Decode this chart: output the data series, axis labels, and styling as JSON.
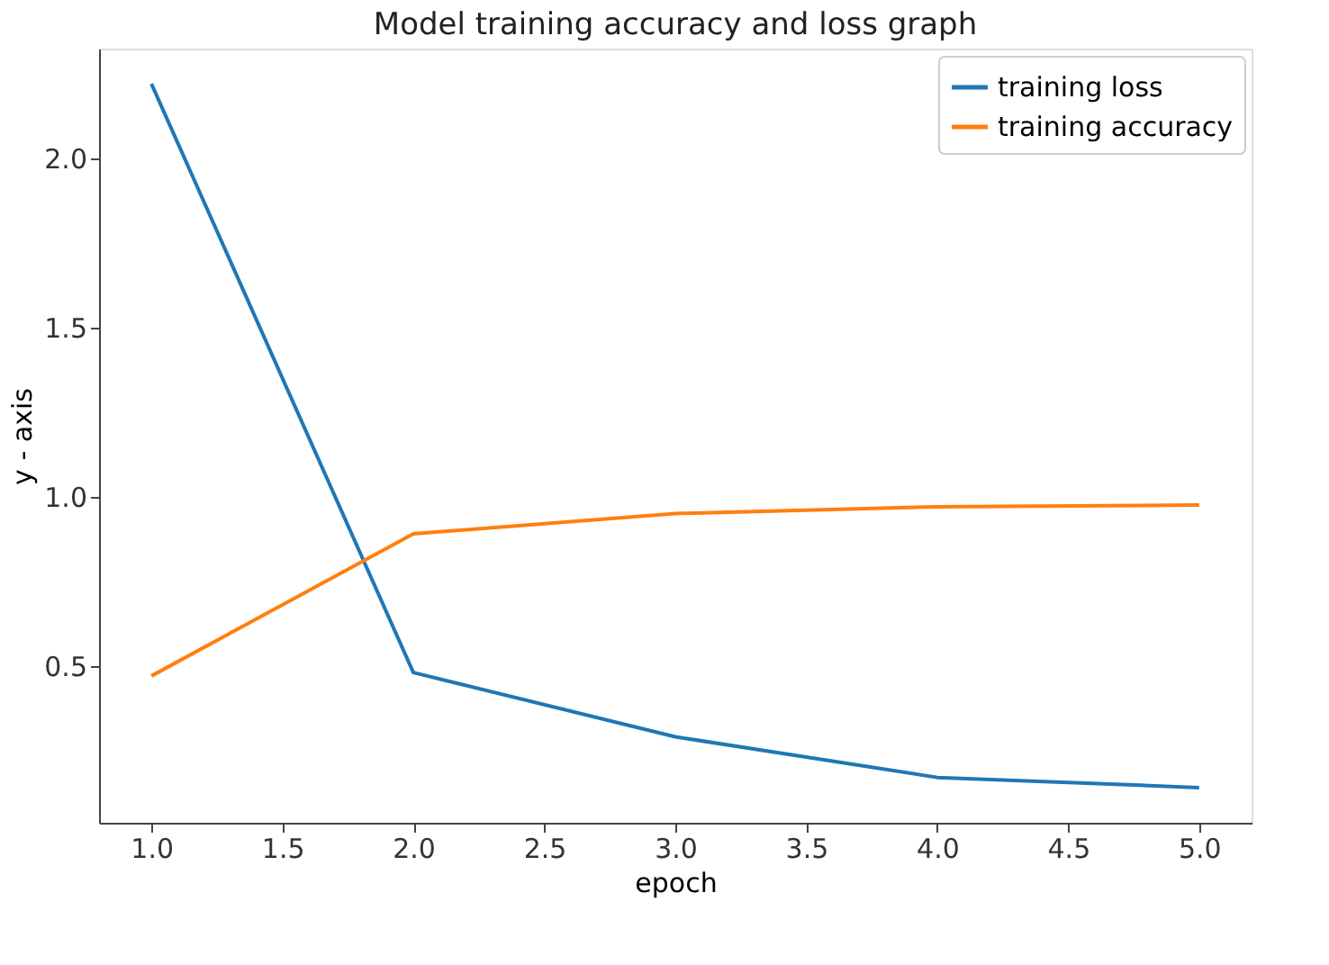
{
  "chart_data": {
    "type": "line",
    "title": "Model training accuracy and loss graph",
    "xlabel": "epoch",
    "ylabel": "y - axis",
    "x": [
      1.0,
      2.0,
      3.0,
      4.0,
      5.0
    ],
    "series": [
      {
        "name": "training loss",
        "color": "#1f77b4",
        "values": [
          2.22,
          0.48,
          0.29,
          0.17,
          0.14
        ]
      },
      {
        "name": "training accuracy",
        "color": "#ff7f0e",
        "values": [
          0.47,
          0.89,
          0.95,
          0.97,
          0.975
        ]
      }
    ],
    "xlim": [
      0.8,
      5.2
    ],
    "ylim": [
      0.036,
      2.324
    ],
    "xticks": [
      {
        "value": 1,
        "label": "1.0"
      },
      1.5,
      {
        "value": 2,
        "label": "2.0"
      },
      2.5,
      {
        "value": 3,
        "label": "3.0"
      },
      3.5,
      {
        "value": 4,
        "label": "4.0"
      },
      4.5,
      {
        "value": 5,
        "label": "5.0"
      }
    ],
    "yticks": [
      0.5,
      {
        "value": 1,
        "label": "1.0"
      },
      1.5,
      {
        "value": 2,
        "label": "2.0"
      }
    ],
    "grid": false,
    "legend": "top right",
    "marker": "none",
    "line_style": "solid"
  }
}
